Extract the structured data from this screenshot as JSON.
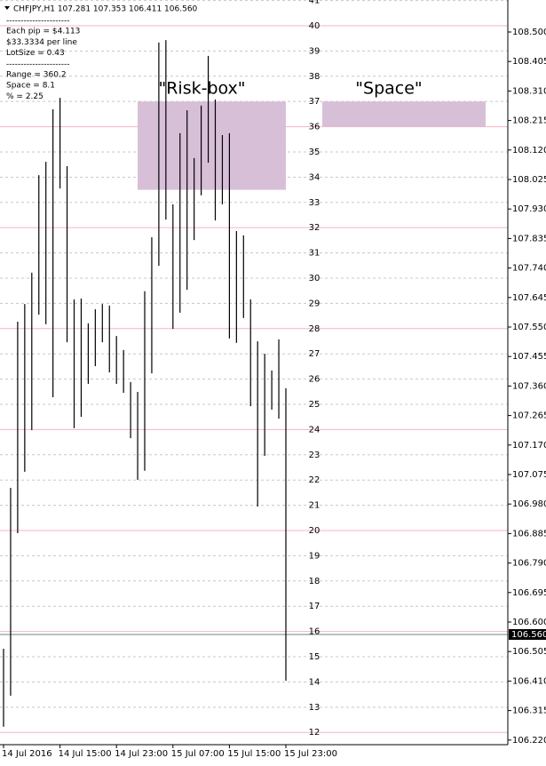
{
  "chart_data": {
    "type": "ohlc",
    "header": "CHFJPY,H1  107.281 107.353 106.411 106.560",
    "info": [
      "----------------------",
      "Each pip = $4.113",
      "$33.3334 per line",
      "LotSize = 0.43",
      "----------------------",
      "Range = 360.2",
      "Space = 8.1",
      "% = 2.25"
    ],
    "categories": [
      "14 Jul 2016",
      null,
      null,
      null,
      null,
      null,
      null,
      null,
      "14 Jul 15:00",
      null,
      null,
      null,
      null,
      null,
      null,
      null,
      "14 Jul 23:00",
      null,
      null,
      null,
      null,
      null,
      null,
      null,
      "15 Jul 07:00",
      null,
      null,
      null,
      null,
      null,
      null,
      null,
      "15 Jul 15:00",
      null,
      null,
      null,
      null,
      null,
      null,
      null,
      "15 Jul 23:00"
    ],
    "high": [
      106.514,
      107.032,
      107.567,
      107.624,
      107.725,
      108.039,
      108.082,
      108.251,
      108.288,
      108.068,
      107.639,
      107.642,
      107.562,
      107.607,
      107.624,
      107.619,
      107.521,
      107.476,
      107.373,
      107.341,
      107.665,
      107.839,
      108.466,
      108.474,
      107.945,
      108.174,
      108.248,
      108.094,
      108.263,
      108.423,
      108.283,
      108.168,
      108.174,
      107.859,
      107.845,
      107.639,
      107.504,
      107.464,
      107.41,
      107.51,
      107.353
    ],
    "low": [
      106.263,
      106.363,
      106.886,
      107.084,
      107.218,
      107.59,
      107.559,
      107.324,
      107.996,
      107.501,
      107.224,
      107.261,
      107.367,
      107.424,
      107.501,
      107.404,
      107.367,
      107.338,
      107.192,
      107.058,
      107.087,
      107.401,
      107.747,
      107.896,
      107.544,
      107.596,
      107.67,
      107.83,
      107.974,
      108.079,
      107.893,
      107.945,
      107.513,
      107.499,
      107.579,
      107.295,
      106.972,
      107.135,
      107.284,
      107.255,
      106.411
    ],
    "color": "#000000",
    "ylim": [
      106.208,
      108.603
    ],
    "yticks": [
      {
        "value": 108.5,
        "label": "108.500"
      },
      108.405,
      {
        "value": 108.31,
        "label": "108.310"
      },
      108.215,
      {
        "value": 108.12,
        "label": "108.120"
      },
      108.025,
      {
        "value": 107.93,
        "label": "107.930"
      },
      107.835,
      {
        "value": 107.74,
        "label": "107.740"
      },
      107.645,
      {
        "value": 107.55,
        "label": "107.550"
      },
      107.455,
      {
        "value": 107.36,
        "label": "107.360"
      },
      107.265,
      {
        "value": 107.17,
        "label": "107.170"
      },
      107.075,
      {
        "value": 106.98,
        "label": "106.980"
      },
      106.885,
      {
        "value": 106.79,
        "label": "106.790"
      },
      106.695,
      {
        "value": 106.6,
        "label": "106.600"
      },
      106.505,
      {
        "value": 106.41,
        "label": "106.410"
      },
      106.315,
      {
        "value": 106.22,
        "label": "106.220"
      }
    ],
    "current_price": {
      "value": 106.56,
      "label": "106.560"
    },
    "y2lim": [
      11.55,
      41.02
    ],
    "y2ticks": [
      12,
      13,
      14,
      15,
      16,
      17,
      18,
      19,
      20,
      21,
      22,
      23,
      24,
      25,
      26,
      27,
      28,
      29,
      30,
      31,
      32,
      33,
      34,
      35,
      36,
      37,
      38,
      39,
      40,
      41
    ],
    "boxes": [
      {
        "label": "\"Risk-box\"",
        "top": 37,
        "bottom": 33.5,
        "axis": "y2",
        "color": "#d8bfd8"
      },
      {
        "label": "\"Space\"",
        "top": 37,
        "bottom": 36,
        "axis": "y2",
        "color": "#d8bfd8"
      }
    ]
  }
}
